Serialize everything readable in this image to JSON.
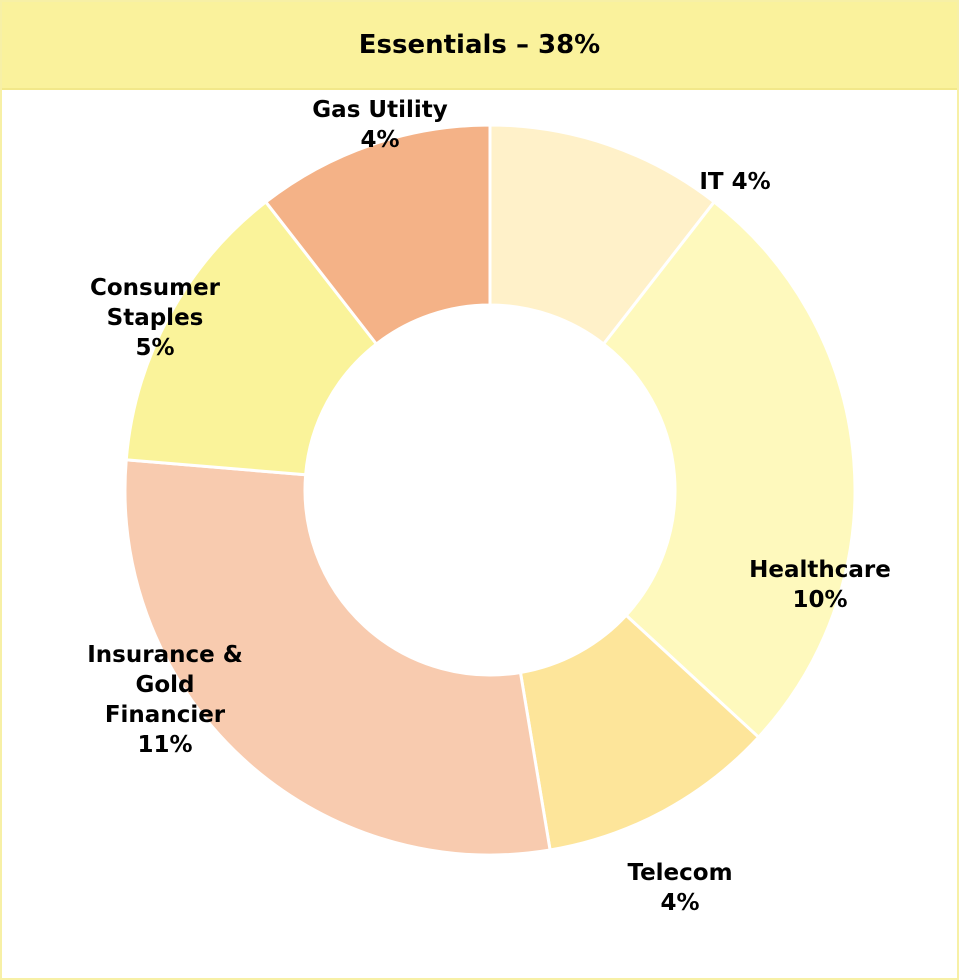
{
  "chart_data": {
    "type": "donut",
    "title": "Essentials – 38%",
    "categories": [
      "IT",
      "Healthcare",
      "Telecom",
      "Insurance & Gold Financier",
      "Consumer Staples",
      "Gas Utility"
    ],
    "values": [
      4,
      10,
      4,
      11,
      5,
      4
    ],
    "value_labels": [
      "4%",
      "10%",
      "4%",
      "11%",
      "5%",
      "4%"
    ],
    "colors": [
      "#fff1c9",
      "#fef9bd",
      "#fde59a",
      "#f8cbaf",
      "#faf39a",
      "#f4b287"
    ]
  }
}
